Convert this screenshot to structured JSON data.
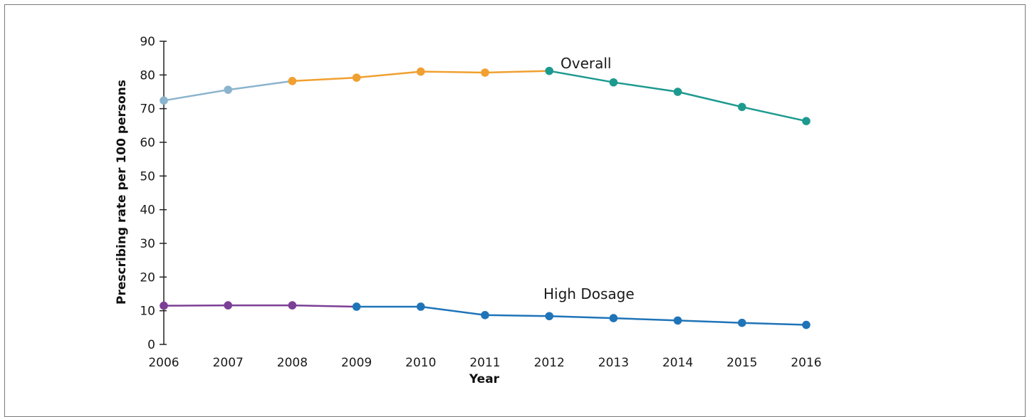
{
  "chart_data": {
    "type": "line",
    "title": "",
    "xlabel": "Year",
    "ylabel": "Prescribing rate per 100 persons",
    "x": [
      2006,
      2007,
      2008,
      2009,
      2010,
      2011,
      2012,
      2013,
      2014,
      2015,
      2016
    ],
    "xlim": [
      2006,
      2016
    ],
    "ylim": [
      0,
      90
    ],
    "yticks": [
      0,
      10,
      20,
      30,
      40,
      50,
      60,
      70,
      80,
      90
    ],
    "grid": false,
    "series": [
      {
        "name": "Overall",
        "values": [
          72.4,
          75.6,
          78.2,
          79.2,
          81.0,
          80.7,
          81.2,
          77.8,
          75.0,
          70.5,
          66.3
        ],
        "segments": [
          {
            "from": 2006,
            "to": 2008,
            "color": "#8bb4ce"
          },
          {
            "from": 2008,
            "to": 2012,
            "color": "#f0a030"
          },
          {
            "from": 2012,
            "to": 2016,
            "color": "#1d9a8f"
          }
        ]
      },
      {
        "name": "High Dosage",
        "values": [
          11.5,
          11.6,
          11.6,
          11.2,
          11.2,
          8.7,
          8.4,
          7.8,
          7.1,
          6.4,
          5.8
        ],
        "segments": [
          {
            "from": 2006,
            "to": 2009,
            "color": "#7b3f95"
          },
          {
            "from": 2009,
            "to": 2016,
            "color": "#1f74b8"
          }
        ]
      }
    ]
  }
}
